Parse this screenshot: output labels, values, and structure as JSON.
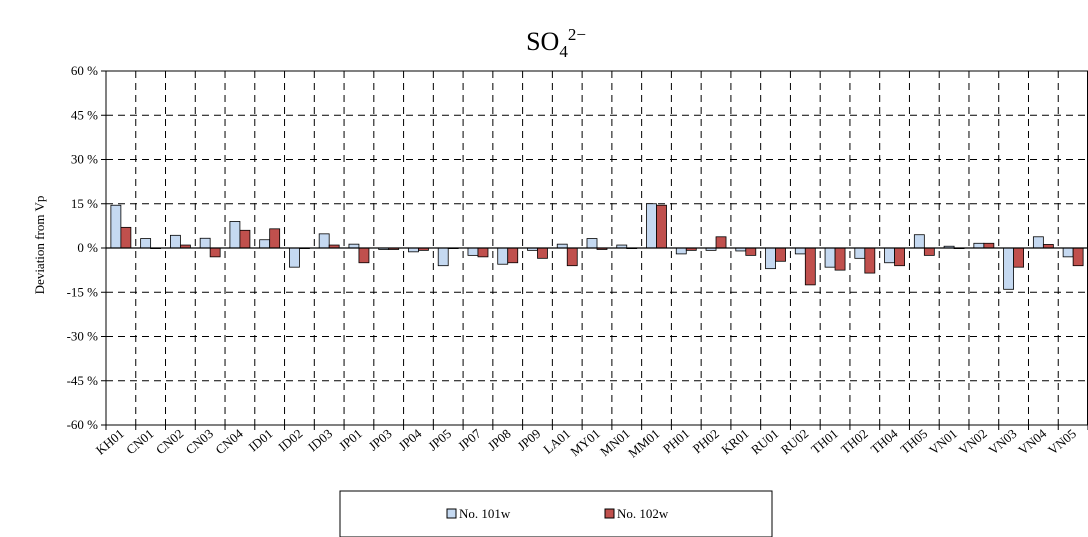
{
  "chart_data": {
    "type": "bar",
    "title": {
      "base": "SO",
      "sub": "4",
      "sup": "2−"
    },
    "ylabel": "Deviation from Vp",
    "xlabel": "",
    "ylim": [
      -60,
      60
    ],
    "yticks": [
      60,
      45,
      30,
      15,
      0,
      -15,
      -30,
      -45,
      -60
    ],
    "ytick_labels": [
      "60 %",
      "45 %",
      "30 %",
      "15 %",
      "0 %",
      "-15 %",
      "-30 %",
      "-45 %",
      "-60 %"
    ],
    "grid": true,
    "legend_position": "bottom-center",
    "categories": [
      "KH01",
      "CN01",
      "CN02",
      "CN03",
      "CN04",
      "ID01",
      "ID02",
      "ID03",
      "JP01",
      "JP03",
      "JP04",
      "JP05",
      "JP07",
      "JP08",
      "JP09",
      "LA01",
      "MY01",
      "MN01",
      "MM01",
      "PH01",
      "PH02",
      "KR01",
      "RU01",
      "RU02",
      "TH01",
      "TH02",
      "TH04",
      "TH05",
      "VN01",
      "VN02",
      "VN03",
      "VN04",
      "VN05"
    ],
    "series": [
      {
        "name": "No. 101w",
        "color": "#c5d9f1",
        "values": [
          14.5,
          3.2,
          4.3,
          3.3,
          9.0,
          2.8,
          -6.5,
          4.8,
          1.3,
          -0.5,
          -1.3,
          -6.0,
          -2.5,
          -5.5,
          -0.8,
          1.3,
          3.2,
          1.0,
          15.0,
          -2.0,
          -0.8,
          -1.0,
          -7.0,
          -2.0,
          -6.5,
          -3.5,
          -5.0,
          4.5,
          0.6,
          1.6,
          -14.0,
          3.8,
          -3.0
        ]
      },
      {
        "name": "No. 102w",
        "color": "#c0504d",
        "values": [
          7.0,
          0.0,
          1.0,
          -3.0,
          6.0,
          6.5,
          0.0,
          1.0,
          -5.0,
          -0.5,
          -0.8,
          0.0,
          -3.0,
          -5.0,
          -3.5,
          -6.0,
          -0.5,
          0.0,
          14.5,
          -0.8,
          3.8,
          -2.5,
          -4.5,
          -12.5,
          -7.5,
          -8.5,
          -6.0,
          -2.5,
          0.0,
          1.6,
          -6.5,
          1.2,
          -6.0
        ]
      }
    ]
  }
}
